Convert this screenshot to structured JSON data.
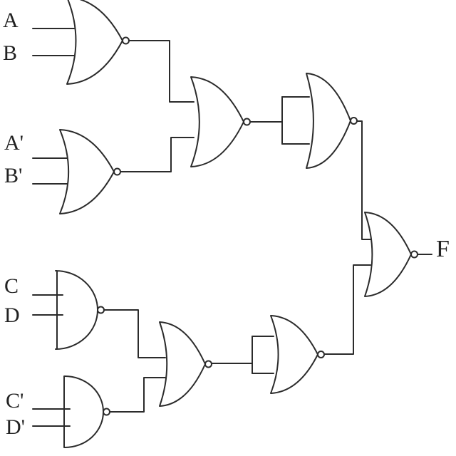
{
  "stroke_color": "#2b2b2b",
  "background": "#ffffff",
  "inputs": [
    {
      "id": "A",
      "label": "A"
    },
    {
      "id": "B",
      "label": "B"
    },
    {
      "id": "A_prime",
      "label": "A'"
    },
    {
      "id": "B_prime",
      "label": "B'"
    },
    {
      "id": "C",
      "label": "C"
    },
    {
      "id": "D",
      "label": "D"
    },
    {
      "id": "C_prime",
      "label": "C'"
    },
    {
      "id": "D_prime",
      "label": "D'"
    }
  ],
  "output": {
    "id": "F",
    "label": "F"
  },
  "gates": [
    {
      "id": "g1",
      "type": "NOR"
    },
    {
      "id": "g2",
      "type": "NOR"
    },
    {
      "id": "g3",
      "type": "NAND"
    },
    {
      "id": "g4",
      "type": "NAND"
    },
    {
      "id": "g5",
      "type": "NOR"
    },
    {
      "id": "g6",
      "type": "NOR"
    },
    {
      "id": "g7",
      "type": "NOR"
    },
    {
      "id": "g8",
      "type": "NOR"
    },
    {
      "id": "g9",
      "type": "NOR"
    }
  ]
}
